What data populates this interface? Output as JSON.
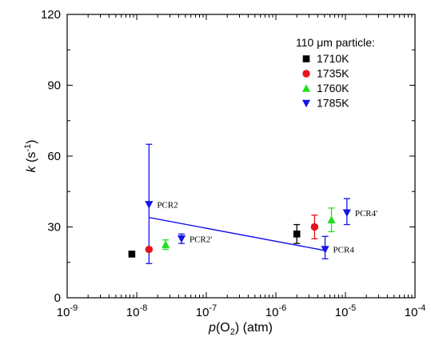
{
  "chart_data": {
    "type": "scatter",
    "xlabel": {
      "prefix": "p",
      "mid": "(O",
      "sub": "2",
      "suffix": ") (atm)"
    },
    "ylabel": {
      "italic": "k",
      "pre": " (s",
      "sup": "-1",
      "post": ")"
    },
    "x_scale": "log",
    "xlim": [
      1e-09,
      0.0001
    ],
    "ylim": [
      0,
      120
    ],
    "x_ticks": [
      {
        "value": 1e-09,
        "base": "10",
        "exp": "-9"
      },
      {
        "value": 1e-08,
        "base": "10",
        "exp": "-8"
      },
      {
        "value": 1e-07,
        "base": "10",
        "exp": "-7"
      },
      {
        "value": 1e-06,
        "base": "10",
        "exp": "-6"
      },
      {
        "value": 1e-05,
        "base": "10",
        "exp": "-5"
      },
      {
        "value": 0.0001,
        "base": "10",
        "exp": "-4"
      }
    ],
    "y_ticks": [
      {
        "value": 0,
        "label": "0"
      },
      {
        "value": 30,
        "label": "30"
      },
      {
        "value": 60,
        "label": "60"
      },
      {
        "value": 90,
        "label": "90"
      },
      {
        "value": 120,
        "label": "120"
      }
    ],
    "grid": false,
    "legend": {
      "title": {
        "pre": "110 ",
        "mu": "μ",
        "post": "m particle:"
      },
      "placement": "top-right"
    },
    "series": [
      {
        "name": "1710K",
        "color": "#000000",
        "marker": "square",
        "points": [
          {
            "x": 8.5e-09,
            "y": 18.5
          },
          {
            "x": 2e-06,
            "y": 27,
            "err_lo": 23,
            "err_hi": 31
          }
        ]
      },
      {
        "name": "1735K",
        "color": "#e8141c",
        "marker": "circle",
        "points": [
          {
            "x": 1.5e-08,
            "y": 20.5
          },
          {
            "x": 3.6e-06,
            "y": 30,
            "err_lo": 25,
            "err_hi": 35
          }
        ]
      },
      {
        "name": "1760K",
        "color": "#1ee01e",
        "marker": "triangle-up",
        "points": [
          {
            "x": 2.6e-08,
            "y": 22.5,
            "err_lo": 20.5,
            "err_hi": 24.5
          },
          {
            "x": 6.3e-06,
            "y": 33,
            "err_lo": 28,
            "err_hi": 38
          }
        ]
      },
      {
        "name": "1785K",
        "color": "#1515e8",
        "marker": "triangle-down",
        "points": [
          {
            "x": 1.5e-08,
            "y": 39.5,
            "err_lo": 14.5,
            "err_hi": 65
          },
          {
            "x": 4.4e-08,
            "y": 25,
            "err_lo": 23,
            "err_hi": 27
          },
          {
            "x": 5.1e-06,
            "y": 20.5,
            "err_lo": 16.5,
            "err_hi": 26
          },
          {
            "x": 1.05e-05,
            "y": 36,
            "err_lo": 31,
            "err_hi": 42
          }
        ]
      }
    ],
    "fit_line": {
      "color": "#1515e8",
      "x": [
        1.5e-08,
        5.1e-06
      ],
      "y": [
        34,
        20
      ]
    },
    "annotations": [
      {
        "text": "PCR2",
        "x": 1.5e-08,
        "y": 39.5
      },
      {
        "text": "PCR2'",
        "x": 4.4e-08,
        "y": 25
      },
      {
        "text": "PCR4",
        "x": 5.1e-06,
        "y": 20.5
      },
      {
        "text": "PCR4'",
        "x": 1.05e-05,
        "y": 36
      }
    ]
  }
}
